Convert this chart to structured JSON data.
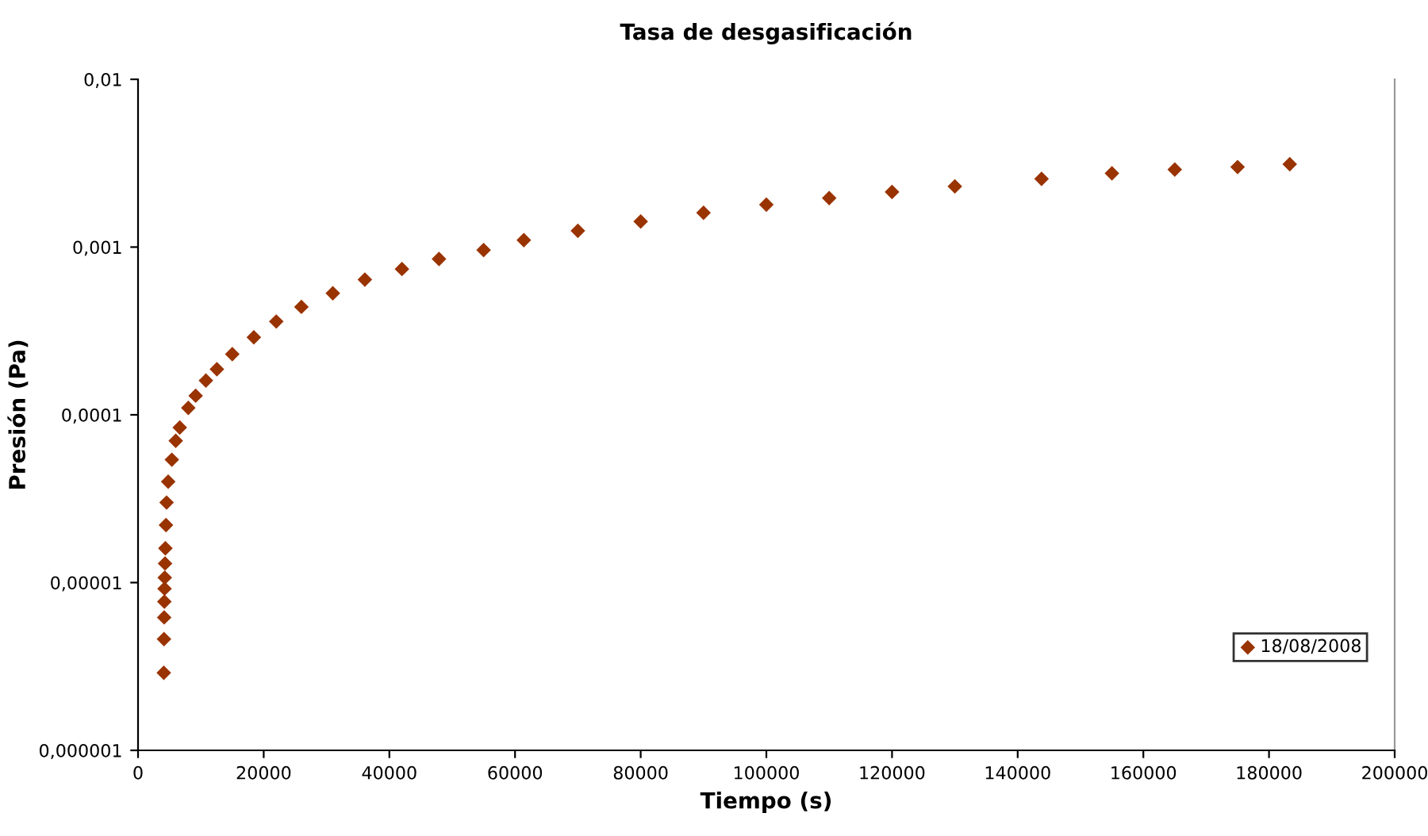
{
  "chart_data": {
    "type": "scatter",
    "title": "Tasa de desgasificación",
    "xlabel": "Tiempo (s)",
    "ylabel": "Presión (Pa)",
    "log": "y",
    "grid": false,
    "legend": "bottom right",
    "marker": "diamond",
    "xlim": [
      0,
      200000
    ],
    "xticks": [
      0,
      20000,
      40000,
      60000,
      80000,
      100000,
      120000,
      140000,
      160000,
      180000,
      200000
    ],
    "ylim": [
      1e-06,
      0.01
    ],
    "yticks": [
      {
        "value": 1e-06,
        "label": "0,000001"
      },
      {
        "value": 1e-05,
        "label": "0,00001"
      },
      {
        "value": 0.0001,
        "label": "0,0001"
      },
      {
        "value": 0.001,
        "label": "0,001"
      },
      {
        "value": 0.01,
        "label": "0,01"
      }
    ],
    "series": [
      {
        "name": "18/08/2008",
        "color": "#993300",
        "x": [
          4100,
          4130,
          4160,
          4190,
          4220,
          4250,
          4300,
          4350,
          4450,
          4545,
          4800,
          5380,
          6000,
          6640,
          8000,
          9170,
          10800,
          12550,
          15000,
          18430,
          22000,
          26000,
          31000,
          36100,
          42000,
          47900,
          55000,
          61400,
          70000,
          80000,
          90000,
          100000,
          110000,
          120000,
          130000,
          143800,
          155000,
          165000,
          175000,
          183300
        ],
        "values": [
          2.9e-06,
          4.6e-06,
          6.2e-06,
          7.7e-06,
          9.2e-06,
          1.07e-05,
          1.3e-05,
          1.6e-05,
          2.2e-05,
          3e-05,
          4e-05,
          5.4e-05,
          7e-05,
          8.4e-05,
          0.00011,
          0.00013,
          0.00016,
          0.000187,
          0.00023,
          0.00029,
          0.00036,
          0.00044,
          0.00053,
          0.00064,
          0.00074,
          0.00085,
          0.00096,
          0.0011,
          0.00125,
          0.00142,
          0.0016,
          0.00179,
          0.00196,
          0.00213,
          0.0023,
          0.00255,
          0.00275,
          0.0029,
          0.003,
          0.00312
        ]
      }
    ]
  }
}
